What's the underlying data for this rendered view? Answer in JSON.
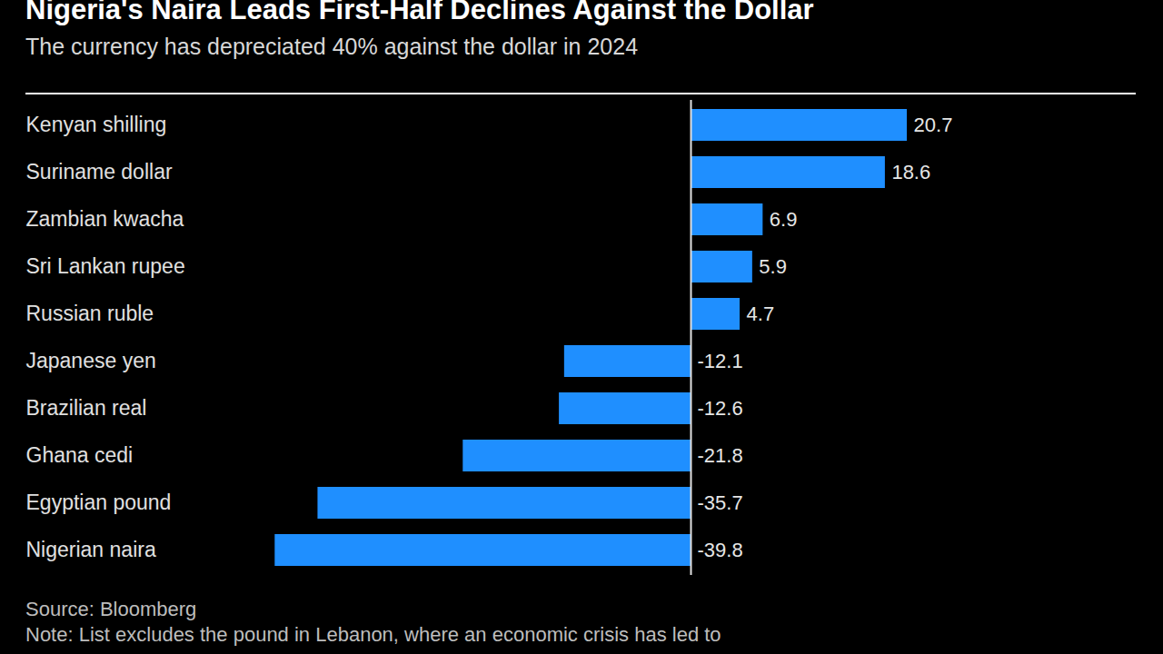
{
  "chart_data": {
    "type": "bar",
    "orientation": "horizontal",
    "title": "Nigeria's Naira Leads First-Half Declines Against the Dollar",
    "subtitle": "The currency has depreciated 40% against the dollar in 2024",
    "source": "Source: Bloomberg",
    "note": "Note: List excludes the pound in Lebanon, where an economic crisis has led to",
    "categories": [
      "Kenyan shilling",
      "Suriname dollar",
      "Zambian kwacha",
      "Sri Lankan rupee",
      "Russian ruble",
      "Japanese yen",
      "Brazilian real",
      "Ghana cedi",
      "Egyptian pound",
      "Nigerian naira"
    ],
    "values": [
      20.7,
      18.6,
      6.9,
      5.9,
      4.7,
      -12.1,
      -12.6,
      -21.8,
      -35.7,
      -39.8
    ],
    "color": "#1f8fff",
    "xlim": [
      -40,
      40
    ],
    "data_labels": true,
    "tick_labels": "y"
  }
}
